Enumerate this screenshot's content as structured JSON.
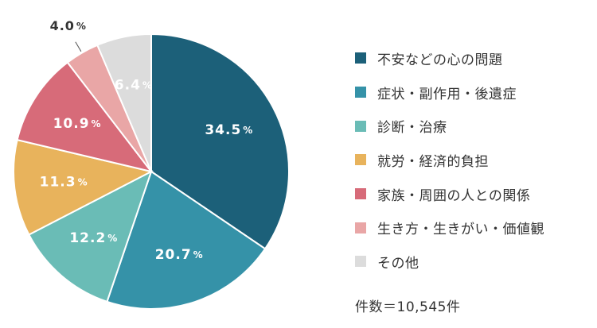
{
  "chart_data": {
    "type": "pie",
    "unit_suffix": "%",
    "slices": [
      {
        "label": "不安などの心の問題",
        "value": 34.5,
        "value_label": "34.5",
        "color": "#1c6079"
      },
      {
        "label": "症状・副作用・後遺症",
        "value": 20.7,
        "value_label": "20.7",
        "color": "#3592a8"
      },
      {
        "label": "診断・治療",
        "value": 12.2,
        "value_label": "12.2",
        "color": "#6abcb6"
      },
      {
        "label": "就労・経済的負担",
        "value": 11.3,
        "value_label": "11.3",
        "color": "#e8b35c"
      },
      {
        "label": "家族・周囲の人との関係",
        "value": 10.9,
        "value_label": "10.9",
        "color": "#d76b79"
      },
      {
        "label": "生き方・生きがい・価値観",
        "value": 4.0,
        "value_label": "4.0",
        "color": "#e9a6a6"
      },
      {
        "label": "その他",
        "value": 6.4,
        "value_label": "6.4",
        "color": "#dcdcdc"
      }
    ],
    "legend_position": "right"
  },
  "total_label": "件数＝10,545件"
}
